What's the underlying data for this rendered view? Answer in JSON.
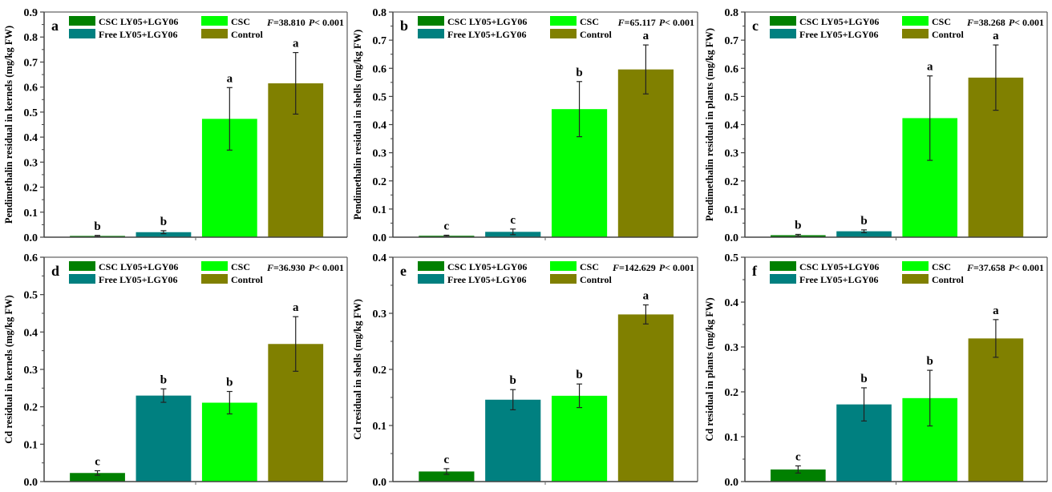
{
  "figure": {
    "legend": {
      "entries": [
        {
          "label": "CSC LY05+LGY06",
          "color": "#008000"
        },
        {
          "label": "Free LY05+LGY06",
          "color": "#008080"
        },
        {
          "label": "CSC",
          "color": "#00FF00"
        },
        {
          "label": "Control",
          "color": "#808000"
        }
      ]
    }
  },
  "chart_data": [
    {
      "type": "bar",
      "panel": "a",
      "title": "",
      "xlabel": "",
      "ylabel": "Pendimethalin residual in kernels (mg/kg FW)",
      "ylim": [
        0,
        0.9
      ],
      "yticks": [
        "0.0",
        "0.1",
        "0.2",
        "0.3",
        "0.4",
        "0.5",
        "0.6",
        "0.7",
        "0.8",
        "0.9"
      ],
      "ytick_values": [
        0,
        0.1,
        0.2,
        0.3,
        0.4,
        0.5,
        0.6,
        0.7,
        0.8,
        0.9
      ],
      "stat": {
        "F_label": "F",
        "F_value": "=38.810",
        "P_label": "P",
        "P_value": "< 0.001"
      },
      "categories": [
        "CSC LY05+LGY06",
        "Free LY05+LGY06",
        "CSC",
        "Control"
      ],
      "values": [
        0.005,
        0.02,
        0.473,
        0.615
      ],
      "errors": [
        0.002,
        0.006,
        0.125,
        0.123
      ],
      "letters": [
        "b",
        "b",
        "a",
        "a"
      ],
      "legend": "top"
    },
    {
      "type": "bar",
      "panel": "b",
      "title": "",
      "xlabel": "",
      "ylabel": "Pendimethalin residual in shells (mg/kg FW)",
      "ylim": [
        0,
        0.8
      ],
      "yticks": [
        "0.0",
        "0.1",
        "0.2",
        "0.3",
        "0.4",
        "0.5",
        "0.6",
        "0.7",
        "0.8"
      ],
      "ytick_values": [
        0,
        0.1,
        0.2,
        0.3,
        0.4,
        0.5,
        0.6,
        0.7,
        0.8
      ],
      "stat": {
        "F_label": "F",
        "F_value": "=65.117",
        "P_label": "P",
        "P_value": "< 0.001"
      },
      "categories": [
        "CSC LY05+LGY06",
        "Free LY05+LGY06",
        "CSC",
        "Control"
      ],
      "values": [
        0.005,
        0.019,
        0.455,
        0.596
      ],
      "errors": [
        0.002,
        0.01,
        0.098,
        0.087
      ],
      "letters": [
        "c",
        "c",
        "b",
        "a"
      ],
      "legend": "top"
    },
    {
      "type": "bar",
      "panel": "c",
      "title": "",
      "xlabel": "",
      "ylabel": "Pendimethalin residual in plants (mg/kg FW)",
      "ylim": [
        0,
        0.8
      ],
      "yticks": [
        "0.0",
        "0.1",
        "0.2",
        "0.3",
        "0.4",
        "0.5",
        "0.6",
        "0.7",
        "0.8"
      ],
      "ytick_values": [
        0,
        0.1,
        0.2,
        0.3,
        0.4,
        0.5,
        0.6,
        0.7,
        0.8
      ],
      "stat": {
        "F_label": "F",
        "F_value": "=38.268",
        "P_label": "P",
        "P_value": "< 0.001"
      },
      "categories": [
        "CSC LY05+LGY06",
        "Free LY05+LGY06",
        "CSC",
        "Control"
      ],
      "values": [
        0.007,
        0.021,
        0.423,
        0.567
      ],
      "errors": [
        0.003,
        0.005,
        0.15,
        0.116
      ],
      "letters": [
        "b",
        "b",
        "a",
        "a"
      ],
      "legend": "top"
    },
    {
      "type": "bar",
      "panel": "d",
      "title": "",
      "xlabel": "",
      "ylabel": "Cd residual in kernels (mg/kg FW)",
      "ylim": [
        0,
        0.6
      ],
      "yticks": [
        "0.0",
        "0.1",
        "0.2",
        "0.3",
        "0.4",
        "0.5",
        "0.6"
      ],
      "ytick_values": [
        0,
        0.1,
        0.2,
        0.3,
        0.4,
        0.5,
        0.6
      ],
      "stat": {
        "F_label": "F",
        "F_value": "=36.930",
        "P_label": "P",
        "P_value": "< 0.001"
      },
      "categories": [
        "CSC LY05+LGY06",
        "Free LY05+LGY06",
        "CSC",
        "Control"
      ],
      "values": [
        0.023,
        0.23,
        0.211,
        0.368
      ],
      "errors": [
        0.006,
        0.018,
        0.03,
        0.073
      ],
      "letters": [
        "c",
        "b",
        "b",
        "a"
      ],
      "legend": "top"
    },
    {
      "type": "bar",
      "panel": "e",
      "title": "",
      "xlabel": "",
      "ylabel": "Cd residual in shells (mg/kg FW)",
      "ylim": [
        0,
        0.4
      ],
      "yticks": [
        "0.0",
        "0.1",
        "0.2",
        "0.3",
        "0.4"
      ],
      "ytick_values": [
        0,
        0.1,
        0.2,
        0.3,
        0.4
      ],
      "stat": {
        "F_label": "F",
        "F_value": "=142.629",
        "P_label": "P",
        "P_value": "< 0.001"
      },
      "categories": [
        "CSC LY05+LGY06",
        "Free LY05+LGY06",
        "CSC",
        "Control"
      ],
      "values": [
        0.018,
        0.146,
        0.153,
        0.298
      ],
      "errors": [
        0.005,
        0.018,
        0.021,
        0.017
      ],
      "letters": [
        "c",
        "b",
        "b",
        "a"
      ],
      "legend": "top"
    },
    {
      "type": "bar",
      "panel": "f",
      "title": "",
      "xlabel": "",
      "ylabel": "Cd residual in plants (mg/kg FW)",
      "ylim": [
        0,
        0.5
      ],
      "yticks": [
        "0.0",
        "0.1",
        "0.2",
        "0.3",
        "0.4",
        "0.5"
      ],
      "ytick_values": [
        0,
        0.1,
        0.2,
        0.3,
        0.4,
        0.5
      ],
      "stat": {
        "F_label": "F",
        "F_value": "=37.658",
        "P_label": "P",
        "P_value": "< 0.001"
      },
      "categories": [
        "CSC LY05+LGY06",
        "Free LY05+LGY06",
        "CSC",
        "Control"
      ],
      "values": [
        0.027,
        0.172,
        0.186,
        0.319
      ],
      "errors": [
        0.008,
        0.037,
        0.062,
        0.042
      ],
      "letters": [
        "c",
        "b",
        "b",
        "a"
      ],
      "legend": "top"
    }
  ]
}
